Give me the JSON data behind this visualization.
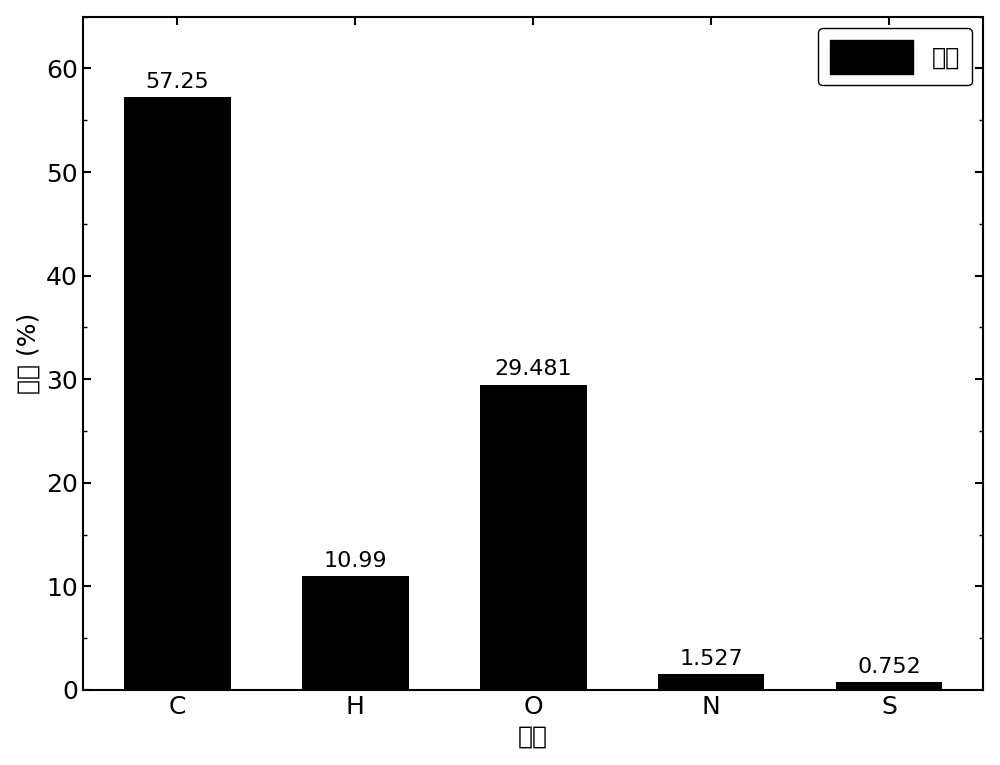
{
  "categories": [
    "C",
    "H",
    "O",
    "N",
    "S"
  ],
  "values": [
    57.25,
    10.99,
    29.481,
    1.527,
    0.752
  ],
  "bar_color": "#000000",
  "bar_labels": [
    "57.25",
    "10.99",
    "29.481",
    "1.527",
    "0.752"
  ],
  "xlabel": "元素",
  "ylabel": "含量 (%)",
  "ylim": [
    0,
    65
  ],
  "yticks": [
    0,
    10,
    20,
    30,
    40,
    50,
    60
  ],
  "legend_label": "稠油",
  "label_fontsize": 18,
  "tick_fontsize": 18,
  "bar_label_fontsize": 16,
  "legend_fontsize": 17,
  "background_color": "#ffffff",
  "bar_width": 0.6
}
